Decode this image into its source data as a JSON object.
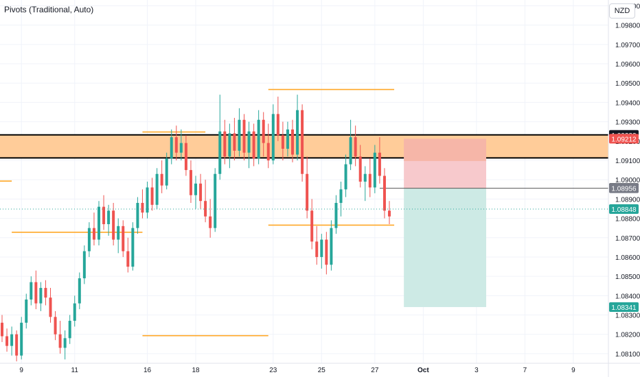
{
  "indicator": {
    "title": "Pivots (Traditional, Auto)"
  },
  "currency_button": "NZD",
  "colors": {
    "up": "#26a69a",
    "down": "#ef5350",
    "pivot": "#ffa726",
    "zone_fill": "#ffcc99",
    "stop_fill": "#f7c9cc",
    "stop_fill_top": "#f6a58a",
    "target_fill": "#cdeae5",
    "last_price": "#26a69a",
    "sell_label": "#ef5350"
  },
  "chart_data": {
    "type": "candlestick",
    "y_range": [
      1.0805,
      1.0993
    ],
    "y_ticks": [
      "1.08100",
      "1.08200",
      "1.08300",
      "1.08400",
      "1.08500",
      "1.08600",
      "1.08700",
      "1.08800",
      "1.08900",
      "1.09000",
      "1.09100",
      "1.09200",
      "1.09300",
      "1.09400",
      "1.09500",
      "1.09600",
      "1.09700",
      "1.09800",
      "1.09900"
    ],
    "x_labels": [
      {
        "label": "9",
        "i": 4,
        "bold": false
      },
      {
        "label": "11",
        "i": 15,
        "bold": false
      },
      {
        "label": "16",
        "i": 30,
        "bold": false
      },
      {
        "label": "18",
        "i": 40,
        "bold": false
      },
      {
        "label": "23",
        "i": 56,
        "bold": false
      },
      {
        "label": "25",
        "i": 66,
        "bold": false
      },
      {
        "label": "27",
        "i": 77,
        "bold": false
      },
      {
        "label": "Oct",
        "i": 87,
        "bold": true
      },
      {
        "label": "3",
        "i": 98,
        "bold": false
      },
      {
        "label": "7",
        "i": 108,
        "bold": false
      },
      {
        "label": "9",
        "i": 118,
        "bold": false
      }
    ],
    "price_labels": [
      {
        "text": "1.09232",
        "value": 1.09232,
        "bg": "#131722"
      },
      {
        "text": "1.09212",
        "value": 1.09212,
        "bg": "#ef5350"
      },
      {
        "text": "1.08957",
        "value": 1.08957,
        "bg": "#131722"
      },
      {
        "text": "1.08956",
        "value": 1.08956,
        "bg": "#787b86"
      },
      {
        "text": "1.08848",
        "value": 1.08848,
        "bg": "#26a69a"
      },
      {
        "text": "1.08341",
        "value": 1.08341,
        "bg": "#26a69a"
      }
    ],
    "resistance_zone": {
      "top": 1.09232,
      "bottom": 1.09113
    },
    "pivot_levels": [
      {
        "from": -1,
        "to": 2,
        "value": 1.08993
      },
      {
        "from": 2,
        "to": 29,
        "value": 1.08728
      },
      {
        "from": 29,
        "to": 42,
        "value": 1.09247
      },
      {
        "from": 29,
        "to": 55,
        "value": 1.08193
      },
      {
        "from": 55,
        "to": 81,
        "value": 1.08765
      },
      {
        "from": 55,
        "to": 81,
        "value": 1.09467
      }
    ],
    "position": {
      "from": 83,
      "to": 100,
      "entry": 1.08956,
      "stop": 1.09212,
      "target": 1.08341,
      "entry_line_from": 78
    },
    "last_price": 1.08848,
    "candles": [
      [
        1.0826,
        1.083,
        1.0816,
        1.0819
      ],
      [
        1.0819,
        1.0823,
        1.0811,
        1.0814
      ],
      [
        1.0814,
        1.0824,
        1.0809,
        1.082
      ],
      [
        1.082,
        1.0822,
        1.0806,
        1.0809
      ],
      [
        1.0809,
        1.0829,
        1.0807,
        1.0826
      ],
      [
        1.0826,
        1.0841,
        1.0823,
        1.0838
      ],
      [
        1.0838,
        1.085,
        1.0835,
        1.0847
      ],
      [
        1.0847,
        1.0853,
        1.0833,
        1.0836
      ],
      [
        1.0836,
        1.0847,
        1.0832,
        1.0844
      ],
      [
        1.0844,
        1.0848,
        1.0835,
        1.0839
      ],
      [
        1.0839,
        1.0844,
        1.0826,
        1.0829
      ],
      [
        1.0829,
        1.0832,
        1.0817,
        1.082
      ],
      [
        1.082,
        1.0827,
        1.081,
        1.0813
      ],
      [
        1.0813,
        1.0822,
        1.0807,
        1.0818
      ],
      [
        1.0818,
        1.083,
        1.0815,
        1.0827
      ],
      [
        1.0827,
        1.084,
        1.0824,
        1.0836
      ],
      [
        1.0836,
        1.0852,
        1.0833,
        1.0849
      ],
      [
        1.0849,
        1.0866,
        1.0846,
        1.0863
      ],
      [
        1.0863,
        1.0878,
        1.086,
        1.0875
      ],
      [
        1.0875,
        1.0883,
        1.0866,
        1.0869
      ],
      [
        1.0869,
        1.0889,
        1.0866,
        1.0886
      ],
      [
        1.0886,
        1.0892,
        1.0874,
        1.0877
      ],
      [
        1.0877,
        1.0887,
        1.0871,
        1.0884
      ],
      [
        1.0884,
        1.0888,
        1.0866,
        1.0869
      ],
      [
        1.0869,
        1.088,
        1.0862,
        1.0876
      ],
      [
        1.0876,
        1.0879,
        1.086,
        1.0863
      ],
      [
        1.0863,
        1.087,
        1.0852,
        1.0855
      ],
      [
        1.0855,
        1.0878,
        1.0853,
        1.0875
      ],
      [
        1.0875,
        1.0891,
        1.0872,
        1.0888
      ],
      [
        1.0888,
        1.0895,
        1.088,
        1.0883
      ],
      [
        1.0883,
        1.0899,
        1.088,
        1.0896
      ],
      [
        1.0896,
        1.0901,
        1.0884,
        1.0887
      ],
      [
        1.0887,
        1.0906,
        1.0885,
        1.0903
      ],
      [
        1.0903,
        1.091,
        1.0893,
        1.0897
      ],
      [
        1.0897,
        1.0914,
        1.0895,
        1.0911
      ],
      [
        1.0911,
        1.0926,
        1.0908,
        1.0922
      ],
      [
        1.0922,
        1.0928,
        1.091,
        1.0914
      ],
      [
        1.0914,
        1.0926,
        1.091,
        1.0919
      ],
      [
        1.0919,
        1.0923,
        1.0902,
        1.0905
      ],
      [
        1.0905,
        1.091,
        1.0888,
        1.0892
      ],
      [
        1.0892,
        1.0902,
        1.0885,
        1.0898
      ],
      [
        1.0898,
        1.0903,
        1.0885,
        1.0889
      ],
      [
        1.0889,
        1.09,
        1.0878,
        1.0881
      ],
      [
        1.0881,
        1.089,
        1.087,
        1.0875
      ],
      [
        1.0875,
        1.0906,
        1.0873,
        1.0903
      ],
      [
        1.0903,
        1.0944,
        1.09,
        1.0925
      ],
      [
        1.0925,
        1.0931,
        1.0908,
        1.0912
      ],
      [
        1.0912,
        1.0929,
        1.0906,
        1.0924
      ],
      [
        1.0924,
        1.0932,
        1.091,
        1.0915
      ],
      [
        1.0915,
        1.0937,
        1.0912,
        1.0931
      ],
      [
        1.0931,
        1.0934,
        1.091,
        1.0914
      ],
      [
        1.0914,
        1.093,
        1.0906,
        1.0925
      ],
      [
        1.0925,
        1.0929,
        1.0907,
        1.0911
      ],
      [
        1.0911,
        1.0936,
        1.0908,
        1.0931
      ],
      [
        1.0931,
        1.0935,
        1.0912,
        1.0919
      ],
      [
        1.0919,
        1.0929,
        1.0906,
        1.091
      ],
      [
        1.091,
        1.0939,
        1.0908,
        1.0934
      ],
      [
        1.0934,
        1.0943,
        1.092,
        1.0923
      ],
      [
        1.0923,
        1.093,
        1.091,
        1.0916
      ],
      [
        1.0916,
        1.093,
        1.0912,
        1.0926
      ],
      [
        1.0926,
        1.0931,
        1.0909,
        1.0913
      ],
      [
        1.0913,
        1.0944,
        1.091,
        1.0936
      ],
      [
        1.0936,
        1.0939,
        1.0899,
        1.0903
      ],
      [
        1.0903,
        1.0912,
        1.088,
        1.0884
      ],
      [
        1.0884,
        1.089,
        1.0864,
        1.0868
      ],
      [
        1.0868,
        1.0876,
        1.0856,
        1.086
      ],
      [
        1.086,
        1.0872,
        1.0854,
        1.0869
      ],
      [
        1.0869,
        1.0873,
        1.0851,
        1.0856
      ],
      [
        1.0856,
        1.0879,
        1.0853,
        1.0875
      ],
      [
        1.0875,
        1.0892,
        1.0872,
        1.0888
      ],
      [
        1.0888,
        1.0899,
        1.0881,
        1.0895
      ],
      [
        1.0895,
        1.0913,
        1.0891,
        1.0908
      ],
      [
        1.0908,
        1.0931,
        1.0905,
        1.0922
      ],
      [
        1.0922,
        1.0928,
        1.0907,
        1.0912
      ],
      [
        1.0912,
        1.0918,
        1.0896,
        1.0899
      ],
      [
        1.0899,
        1.0907,
        1.0889,
        1.0903
      ],
      [
        1.0903,
        1.0911,
        1.0891,
        1.0896
      ],
      [
        1.0896,
        1.0918,
        1.0893,
        1.0914
      ],
      [
        1.0914,
        1.0922,
        1.0898,
        1.0902
      ],
      [
        1.0902,
        1.0906,
        1.088,
        1.0884
      ],
      [
        1.0884,
        1.0889,
        1.0877,
        1.0881
      ]
    ]
  }
}
